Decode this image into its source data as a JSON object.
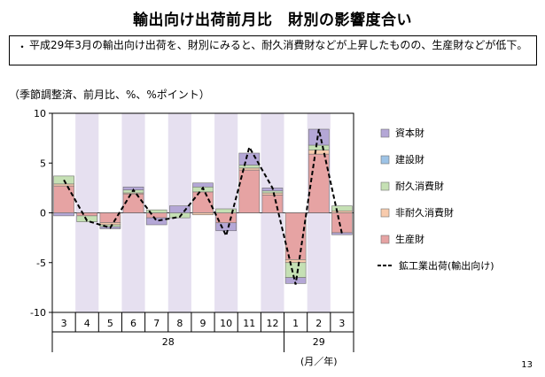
{
  "page": {
    "title": "輸出向け出荷前月比　財別の影響度合い",
    "note_bullet": "・",
    "note": "平成29年3月の輸出向け出荷を、財別にみると、耐久消費財などが上昇したものの、生産財などが低下。",
    "unit_label": "（季節調整済、前月比、%、%ポイント）",
    "page_number": "13"
  },
  "chart_data": {
    "type": "bar",
    "stacked": true,
    "categories": [
      "3",
      "4",
      "5",
      "6",
      "7",
      "8",
      "9",
      "10",
      "11",
      "12",
      "1",
      "2",
      "3"
    ],
    "year_labels": [
      {
        "text": "28",
        "from": 0,
        "to": 9
      },
      {
        "text": "29",
        "from": 10,
        "to": 12
      }
    ],
    "x_unit": "(月／年)",
    "ylim": [
      -10,
      10
    ],
    "yticks": [
      10,
      5,
      0,
      -5,
      -10
    ],
    "shaded_categories": [
      1,
      3,
      5,
      7,
      9,
      11
    ],
    "shade_color": "#e6e0f0",
    "series": [
      {
        "name": "資本財",
        "color": "#b4a7d6",
        "values": [
          -0.3,
          0.0,
          -0.2,
          0.3,
          -0.7,
          0.7,
          0.4,
          -0.8,
          1.2,
          0.3,
          -0.6,
          1.6,
          -0.2
        ]
      },
      {
        "name": "建設財",
        "color": "#9dc3e6",
        "values": [
          0.0,
          0.0,
          0.0,
          0.0,
          0.0,
          0.0,
          0.0,
          0.0,
          0.0,
          0.0,
          0.0,
          0.0,
          0.0
        ]
      },
      {
        "name": "耐久消費財",
        "color": "#c5e0b4",
        "values": [
          0.8,
          -0.6,
          -0.2,
          0.3,
          0.3,
          -0.5,
          0.5,
          0.4,
          0.3,
          0.2,
          -1.5,
          0.5,
          0.5
        ]
      },
      {
        "name": "非耐久消費財",
        "color": "#f8cbad",
        "values": [
          0.2,
          0.0,
          -0.2,
          0.1,
          0.0,
          0.0,
          -0.2,
          0.0,
          0.2,
          0.2,
          -0.3,
          0.4,
          0.2
        ]
      },
      {
        "name": "生産財",
        "color": "#e6a3a3",
        "values": [
          2.7,
          -0.3,
          -1.0,
          1.9,
          -0.5,
          0.0,
          2.1,
          -1.0,
          4.3,
          1.8,
          -4.7,
          5.9,
          -2.0
        ]
      }
    ],
    "line": {
      "name": "鉱工業出荷(輸出向け)",
      "color": "#000000",
      "style": "dashed",
      "values": [
        3.3,
        -0.8,
        -1.5,
        2.3,
        -0.8,
        -0.4,
        2.5,
        -2.3,
        6.6,
        2.5,
        -7.2,
        8.4,
        -2.1
      ]
    }
  }
}
